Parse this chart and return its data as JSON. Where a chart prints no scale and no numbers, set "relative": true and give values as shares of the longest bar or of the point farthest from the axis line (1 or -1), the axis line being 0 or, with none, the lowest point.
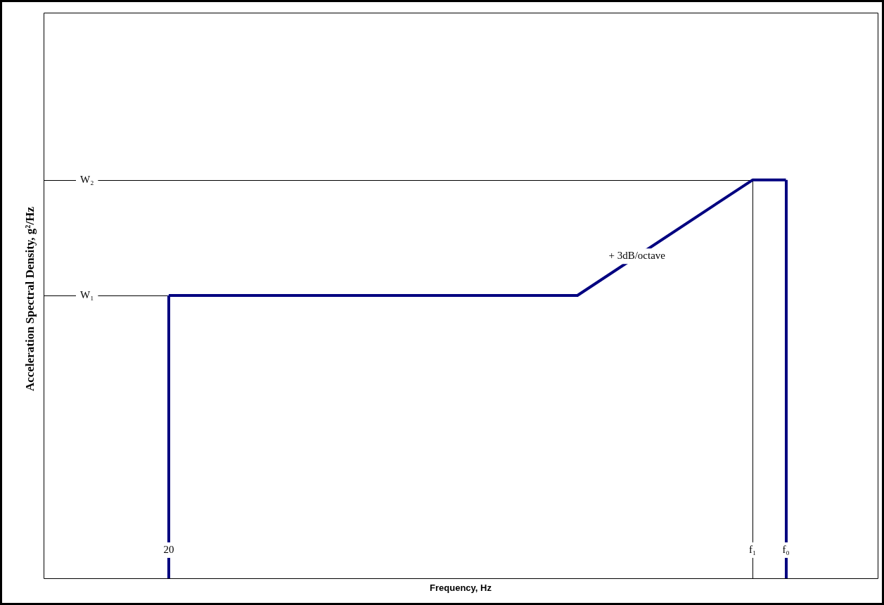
{
  "chart_data": {
    "type": "line",
    "relative": true,
    "xlabel": "Frequency, Hz",
    "ylabel": "Acceleration Spectral Density, g²/Hz",
    "categories": [
      null,
      null,
      null,
      null,
      null,
      null,
      null,
      null,
      null,
      null,
      null,
      null,
      null,
      null,
      null,
      "20",
      null,
      null,
      null,
      null,
      null,
      null,
      null,
      null,
      null,
      null,
      null,
      null,
      null,
      null,
      null,
      null,
      null,
      null,
      null,
      null,
      null,
      null,
      null,
      null,
      null,
      null,
      null,
      null,
      null,
      null,
      null,
      null,
      null,
      null,
      null,
      null,
      null,
      null,
      null,
      null,
      null,
      null,
      null,
      null,
      null,
      null,
      null,
      null,
      null,
      null,
      null,
      null,
      null,
      null,
      null,
      null,
      null,
      null,
      null,
      null,
      null,
      null,
      null,
      null,
      null,
      null,
      null,
      null,
      null,
      "f₁",
      null,
      null,
      null,
      "f₀",
      null,
      null,
      null,
      null,
      null,
      null,
      null,
      null,
      null,
      null,
      null
    ],
    "series": [
      {
        "color": "#000080",
        "values": [
          null,
          null,
          null,
          null,
          null,
          null,
          null,
          null,
          null,
          null,
          null,
          null,
          null,
          null,
          null,
          0.71,
          null,
          null,
          null,
          null,
          null,
          null,
          null,
          null,
          null,
          null,
          null,
          null,
          null,
          null,
          null,
          null,
          null,
          null,
          null,
          null,
          null,
          null,
          null,
          null,
          null,
          null,
          null,
          null,
          null,
          null,
          null,
          null,
          null,
          null,
          null,
          null,
          null,
          null,
          null,
          null,
          null,
          null,
          null,
          null,
          null,
          null,
          null,
          null,
          0.71,
          null,
          null,
          null,
          null,
          null,
          null,
          null,
          null,
          null,
          null,
          null,
          null,
          null,
          null,
          null,
          null,
          null,
          null,
          null,
          null,
          1,
          null,
          null,
          null,
          1,
          null,
          null,
          null,
          null,
          null,
          null,
          null,
          null,
          null,
          null,
          null
        ]
      }
    ],
    "ref_lines": [
      {
        "axis": "y",
        "value": 0.71,
        "label": "W₁",
        "color": "#000000"
      },
      {
        "axis": "y",
        "value": 1,
        "label": "W₂",
        "color": "#000000"
      },
      {
        "axis": "x",
        "value": "20",
        "color": "#000080"
      },
      {
        "axis": "x",
        "value": "f₁",
        "color": "#000000"
      },
      {
        "axis": "x",
        "value": "f₀",
        "color": "#000080"
      }
    ],
    "annotations": [
      "+ 3dB/octave"
    ],
    "grid": false,
    "legend": false,
    "marker": "none",
    "line_style": "solid"
  }
}
